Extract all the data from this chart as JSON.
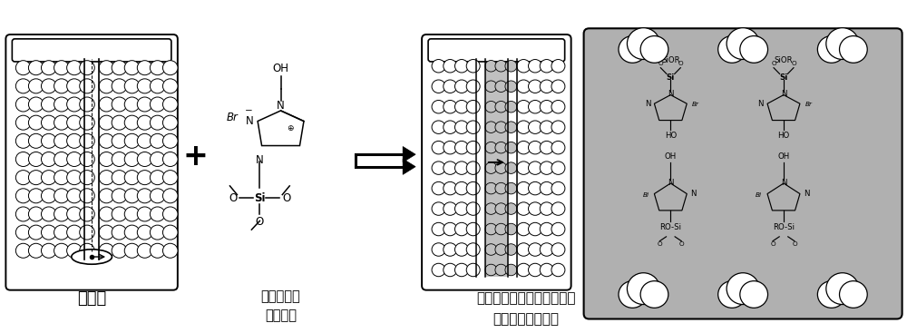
{
  "label_porous": "多孔膜",
  "label_ionic": "含硅功能化\n离子液体",
  "label_product": "化学嫁接的具有催化活性的\n支撑型离子液体膜",
  "bg_color": "#ffffff",
  "gray_fill": "#b0b0b0",
  "membrane_gray": "#c0c0c0",
  "figsize": [
    10.0,
    3.67
  ],
  "dpi": 100,
  "xlim": [
    0,
    10
  ],
  "ylim": [
    0,
    3.67
  ]
}
